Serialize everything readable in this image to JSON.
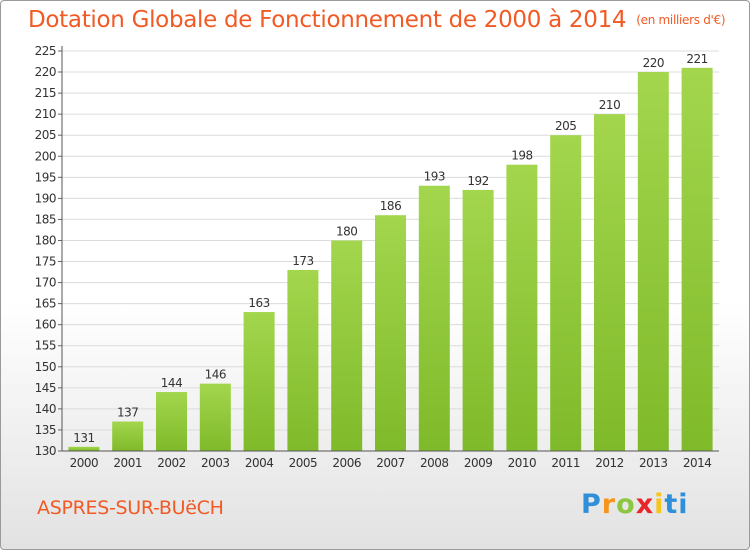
{
  "chart_data": {
    "type": "bar",
    "title": "Dotation Globale de Fonctionnement de 2000 à 2014",
    "subtitle": "(en milliers d'€)",
    "categories": [
      "2000",
      "2001",
      "2002",
      "2003",
      "2004",
      "2005",
      "2006",
      "2007",
      "2008",
      "2009",
      "2010",
      "2011",
      "2012",
      "2013",
      "2014"
    ],
    "values": [
      131,
      137,
      144,
      146,
      163,
      173,
      180,
      186,
      193,
      192,
      198,
      205,
      210,
      220,
      221
    ],
    "ylim": [
      130,
      225
    ],
    "ytick_step": 5,
    "xlabel": "",
    "ylabel": "",
    "bar_color": "#7fba2a",
    "bar_color_light": "#a3d64d",
    "title_color": "#f15a24"
  },
  "footer": {
    "commune": "ASPRES-SUR-BUëCH",
    "brand_letters": [
      "P",
      "r",
      "o",
      "x",
      "i",
      "t",
      "i"
    ]
  }
}
